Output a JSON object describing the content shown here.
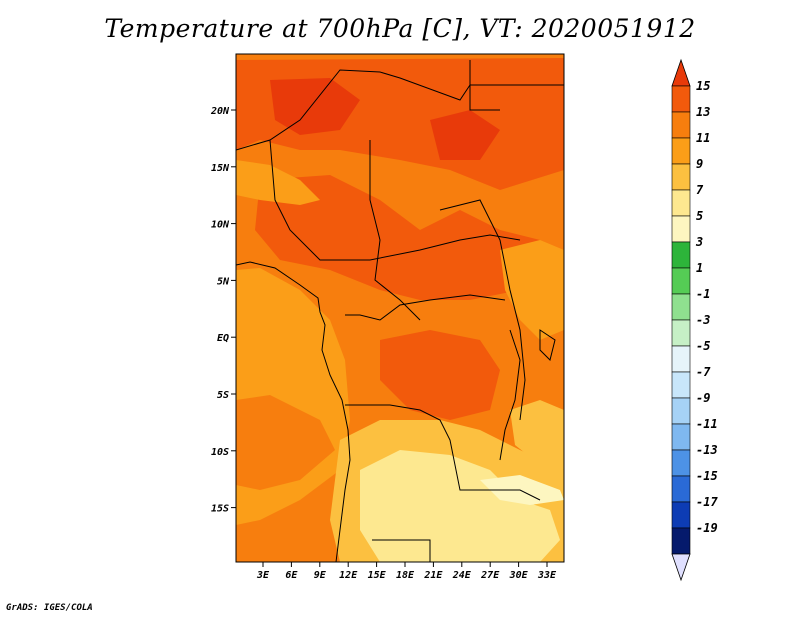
{
  "title": "Temperature at 700hPa [C], VT: 2020051912",
  "credit": "GrADS: IGES/COLA",
  "map": {
    "lat_labels": [
      "20N",
      "15N",
      "10N",
      "5N",
      "EQ",
      "5S",
      "10S",
      "15S"
    ],
    "lon_labels": [
      "3E",
      "6E",
      "9E",
      "12E",
      "15E",
      "18E",
      "21E",
      "24E",
      "27E",
      "30E",
      "33E"
    ]
  },
  "colorbar": {
    "labels": [
      "15",
      "13",
      "11",
      "9",
      "7",
      "5",
      "3",
      "1",
      "-1",
      "-3",
      "-5",
      "-7",
      "-9",
      "-11",
      "-13",
      "-15",
      "-17",
      "-19"
    ],
    "colors": [
      "#e83a0a",
      "#f25a0c",
      "#f77e0e",
      "#fb9e18",
      "#fcc040",
      "#fde890",
      "#fdf6c0",
      "#2db43a",
      "#55cc55",
      "#8fe08f",
      "#c6f0c6",
      "#e6f4fa",
      "#c8e6fa",
      "#a6d2f6",
      "#7fb8f0",
      "#4d92e6",
      "#2a6ad6",
      "#0d3cb4",
      "#051a6c",
      "#e0e0ff"
    ]
  },
  "colors": {
    "hot": "#f25a0c",
    "warm": "#f77e0e",
    "mild": "#fb9e18",
    "cool": "#fcc040",
    "pale": "#fde890"
  }
}
